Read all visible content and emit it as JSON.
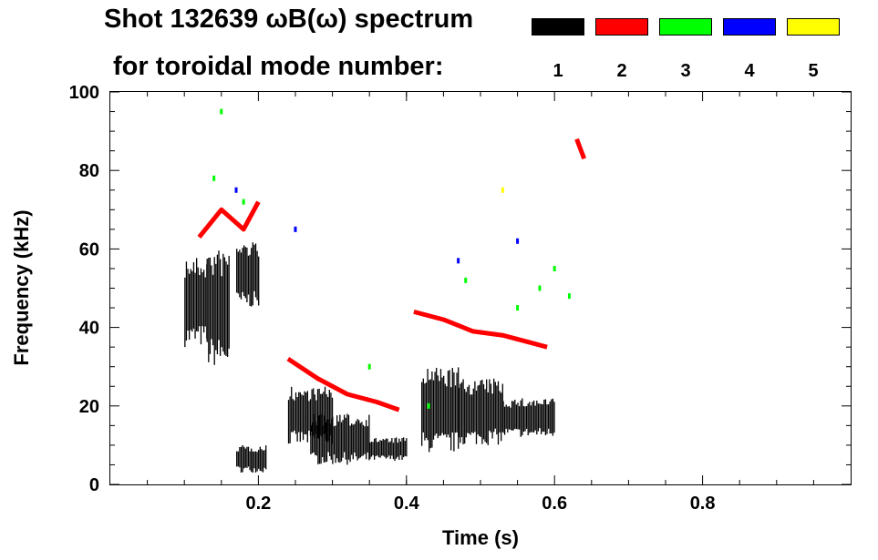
{
  "chart_data": {
    "type": "heatmap",
    "title": "Shot 132639 ωB(ω) spectrum",
    "subtitle": "for toroidal mode number:",
    "xlabel": "Time (s)",
    "ylabel": "Frequency (kHz)",
    "xlim": [
      0.0,
      1.0
    ],
    "ylim": [
      0,
      100
    ],
    "x_ticks": [
      {
        "value": 0.2,
        "label": "0.2"
      },
      {
        "value": 0.4,
        "label": "0.4"
      },
      {
        "value": 0.6,
        "label": "0.6"
      },
      {
        "value": 0.8,
        "label": "0.8"
      }
    ],
    "y_ticks": [
      {
        "value": 0,
        "label": "0"
      },
      {
        "value": 20,
        "label": "20"
      },
      {
        "value": 40,
        "label": "40"
      },
      {
        "value": 60,
        "label": "60"
      },
      {
        "value": 80,
        "label": "80"
      },
      {
        "value": 100,
        "label": "100"
      }
    ],
    "legend": {
      "placement": "top-right",
      "entries": [
        {
          "mode": "1",
          "color": "#000000"
        },
        {
          "mode": "2",
          "color": "#ff0000"
        },
        {
          "mode": "3",
          "color": "#00ff00"
        },
        {
          "mode": "4",
          "color": "#0000ff"
        },
        {
          "mode": "5",
          "color": "#ffff00"
        }
      ]
    },
    "series": [
      {
        "name": "n=1",
        "color": "#000000",
        "regions": [
          {
            "t": [
              0.1,
              0.13
            ],
            "f": [
              35,
              58
            ]
          },
          {
            "t": [
              0.13,
              0.16
            ],
            "f": [
              30,
              60
            ]
          },
          {
            "t": [
              0.17,
              0.2
            ],
            "f": [
              45,
              62
            ]
          },
          {
            "t": [
              0.17,
              0.21
            ],
            "f": [
              3,
              10
            ]
          },
          {
            "t": [
              0.24,
              0.3
            ],
            "f": [
              10,
              25
            ]
          },
          {
            "t": [
              0.27,
              0.35
            ],
            "f": [
              5,
              18
            ]
          },
          {
            "t": [
              0.35,
              0.4
            ],
            "f": [
              6,
              12
            ]
          },
          {
            "t": [
              0.42,
              0.47
            ],
            "f": [
              8,
              30
            ]
          },
          {
            "t": [
              0.47,
              0.53
            ],
            "f": [
              10,
              27
            ]
          },
          {
            "t": [
              0.53,
              0.6
            ],
            "f": [
              12,
              22
            ]
          }
        ]
      },
      {
        "name": "n=2",
        "color": "#ff0000",
        "tracks": [
          {
            "t": [
              0.12,
              0.15,
              0.18,
              0.2
            ],
            "f": [
              63,
              70,
              65,
              72
            ]
          },
          {
            "t": [
              0.24,
              0.28,
              0.32,
              0.36,
              0.39
            ],
            "f": [
              32,
              27,
              23,
              21,
              19
            ]
          },
          {
            "t": [
              0.41,
              0.45,
              0.49,
              0.53,
              0.57,
              0.59
            ],
            "f": [
              44,
              42,
              39,
              38,
              36,
              35
            ]
          },
          {
            "t": [
              0.63,
              0.64
            ],
            "f": [
              88,
              83
            ]
          }
        ]
      },
      {
        "name": "n=3",
        "color": "#00ff00",
        "points": [
          {
            "t": 0.15,
            "f": 95
          },
          {
            "t": 0.14,
            "f": 78
          },
          {
            "t": 0.18,
            "f": 72
          },
          {
            "t": 0.35,
            "f": 30
          },
          {
            "t": 0.43,
            "f": 20
          },
          {
            "t": 0.48,
            "f": 52
          },
          {
            "t": 0.55,
            "f": 45
          },
          {
            "t": 0.58,
            "f": 50
          },
          {
            "t": 0.6,
            "f": 55
          },
          {
            "t": 0.62,
            "f": 48
          }
        ]
      },
      {
        "name": "n=4",
        "color": "#0000ff",
        "points": [
          {
            "t": 0.17,
            "f": 75
          },
          {
            "t": 0.25,
            "f": 65
          },
          {
            "t": 0.47,
            "f": 57
          },
          {
            "t": 0.55,
            "f": 62
          }
        ]
      },
      {
        "name": "n=5",
        "color": "#ffff00",
        "points": [
          {
            "t": 0.53,
            "f": 75
          }
        ]
      }
    ]
  }
}
